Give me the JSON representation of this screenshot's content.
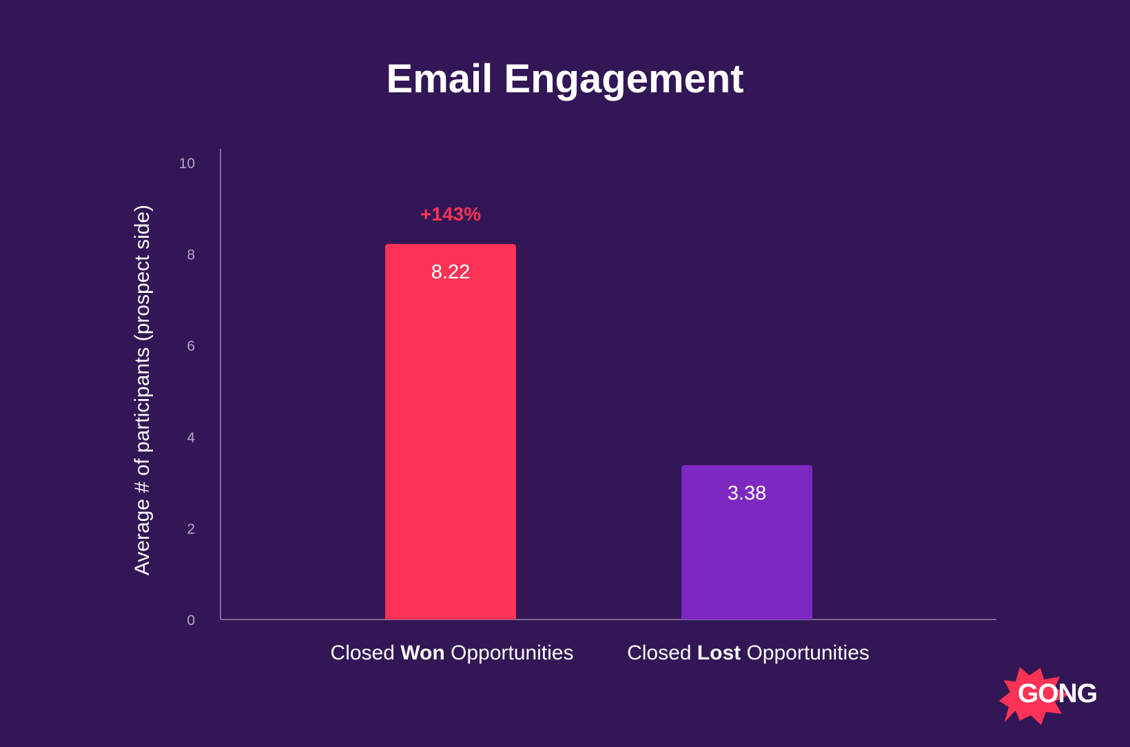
{
  "chart_data": {
    "type": "bar",
    "title": "Email Engagement",
    "xlabel": "",
    "ylabel": "Average # of participants (prospect side)",
    "ylim": [
      0,
      10
    ],
    "yticks": [
      0,
      2,
      4,
      6,
      8,
      10
    ],
    "grid": false,
    "categories": [
      {
        "prefix": "Closed ",
        "bold": "Won",
        "suffix": " Opportunities"
      },
      {
        "prefix": "Closed ",
        "bold": "Lost",
        "suffix": " Opportunities"
      }
    ],
    "values": [
      8.22,
      3.38
    ],
    "value_labels": [
      "8.22",
      "3.38"
    ],
    "colors": [
      "#fc3355",
      "#7e28c2"
    ],
    "annotation": {
      "text": "+143%",
      "bar_index": 0,
      "color": "#fc3355"
    }
  },
  "logo": {
    "text": "GONG",
    "burst_color": "#fc3355"
  }
}
